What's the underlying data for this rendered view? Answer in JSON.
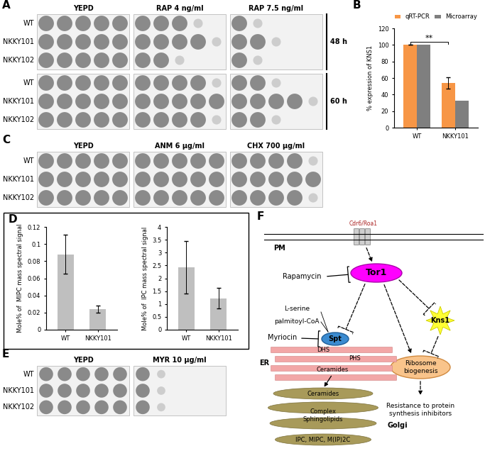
{
  "panel_labels": [
    "A",
    "B",
    "C",
    "D",
    "E",
    "F"
  ],
  "spot_assays": {
    "A": {
      "columns": [
        "YEPD",
        "RAP 4 ng/ml",
        "RAP 7.5 ng/ml"
      ],
      "blocks": [
        {
          "time": "48 h",
          "rows": [
            "WT",
            "NKKY101",
            "NKKY102"
          ]
        },
        {
          "time": "60 h",
          "rows": [
            "WT",
            "NKKY101",
            "NKKY102"
          ]
        }
      ]
    },
    "C": {
      "columns": [
        "YEPD",
        "ANM 6 μg/ml",
        "CHX 700 μg/ml"
      ],
      "rows": [
        "WT",
        "NKKY101",
        "NKKY102"
      ]
    },
    "E": {
      "columns": [
        "YEPD",
        "MYR 10 μg/ml"
      ],
      "rows": [
        "WT",
        "NKKY101",
        "NKKY102"
      ]
    }
  },
  "chart_data": [
    {
      "type": "bar",
      "categories": [
        "WT",
        "NKKY101"
      ],
      "series": [
        {
          "name": "qRT-PCR",
          "color": "#f79646",
          "values": [
            100,
            54
          ],
          "errors": [
            0,
            7
          ]
        },
        {
          "name": "Microarray",
          "color": "#7f7f7f",
          "values": [
            100,
            33
          ]
        }
      ],
      "ylabel": "% expression of KNS1",
      "ylim": [
        0,
        120
      ],
      "yticks": [
        0,
        20,
        40,
        60,
        80,
        100,
        120
      ],
      "legend": "upper center",
      "annotations": [
        "**"
      ]
    },
    {
      "type": "bar",
      "categories": [
        "WT",
        "NKKY101"
      ],
      "values": [
        0.088,
        0.024
      ],
      "errors": [
        0.023,
        0.004
      ],
      "color": "#bfbfbf",
      "ylabel": "Mole% of  MIPC mass spectral signal",
      "ylim": [
        0,
        0.12
      ],
      "yticks": [
        0,
        0.02,
        0.04,
        0.06,
        0.08,
        0.1,
        0.12
      ]
    },
    {
      "type": "bar",
      "categories": [
        "WT",
        "NKKY101"
      ],
      "values": [
        2.43,
        1.22
      ],
      "errors": [
        1.03,
        0.4
      ],
      "color": "#bfbfbf",
      "ylabel": "Mole% of  IPC mass spectral signal",
      "ylim": [
        0,
        4
      ],
      "yticks": [
        0,
        0.5,
        1,
        1.5,
        2,
        2.5,
        3,
        3.5,
        4
      ]
    }
  ],
  "diagram": {
    "membrane": "PM",
    "transporter": "Cdr6/Roa1",
    "tor": "Tor1",
    "rapamycin": "Rapamycin",
    "kns": "Kns1",
    "serine": "L-serine",
    "palmitoyl": "palmitoyl-CoA",
    "myriocin": "Myriocin",
    "spt": "Spt",
    "dhs": "DHS",
    "phs": "PHS",
    "er": "ER",
    "er_ceramides": "Ceramides",
    "golgi": "Golgi",
    "golgi_ceramides": "Ceramides",
    "complex": "Complex\nSphingolipids",
    "ipc": "IPC, MIPC, M(IP)2C",
    "ribosome": "Ribosome\nbiogenesis",
    "resistance": "Resistance to protein\nsynthesis inhibitors"
  }
}
